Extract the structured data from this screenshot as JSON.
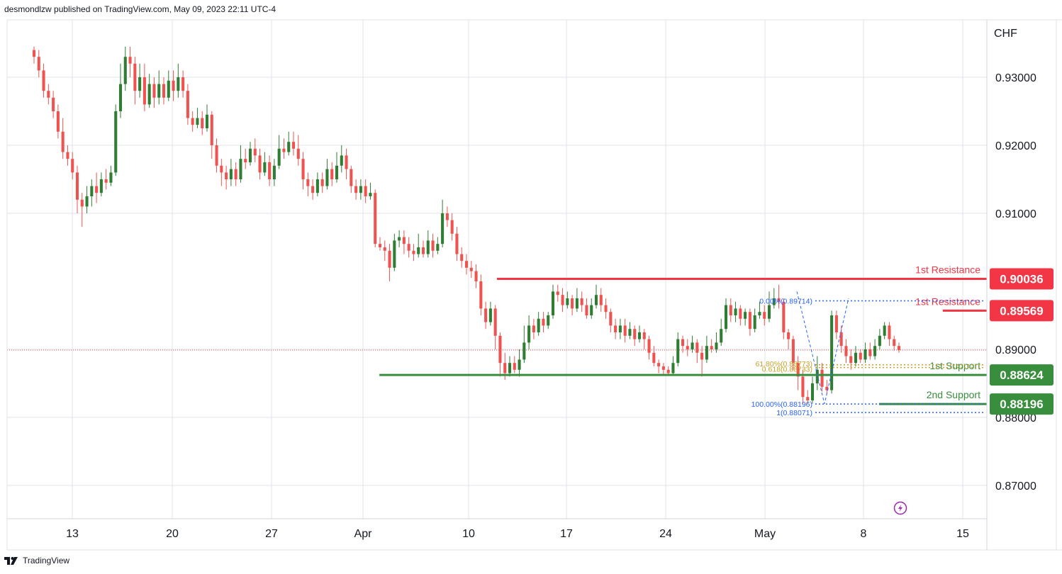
{
  "header": {
    "text": "desmondlzw published on TradingView.com, May 09, 2023 22:11 UTC-4"
  },
  "footer": {
    "brand": "TradingView"
  },
  "colors": {
    "up": "#2e7d32",
    "down": "#ef5350",
    "resistance": "#f23645",
    "support": "#388e3c",
    "fib_blue": "#2962ff",
    "fib_gold": "#c9a227",
    "grid": "#e0e3eb",
    "last_price": "#ef5350",
    "icon_purple": "#9c27b0"
  },
  "chart_data": {
    "type": "candlestick",
    "currency": "CHF",
    "y_ticks": [
      "0.93000",
      "0.92000",
      "0.91000",
      "0.89000",
      "0.88000",
      "0.87000"
    ],
    "y_tick_values": [
      0.93,
      0.92,
      0.91,
      0.89,
      0.88,
      0.87
    ],
    "x_ticks": [
      "13",
      "20",
      "27",
      "Apr",
      "10",
      "17",
      "24",
      "May",
      "8",
      "15"
    ],
    "last_price": 0.8899,
    "levels": [
      {
        "label": "1st Resistance",
        "value": 0.90036,
        "badge": "0.90036",
        "kind": "resistance",
        "start": 0.5
      },
      {
        "label": "1st Resistance",
        "value": 0.89569,
        "badge": "0.89569",
        "kind": "resistance",
        "start": 0.955
      },
      {
        "label": "1st Support",
        "value": 0.88624,
        "badge": "0.88624",
        "kind": "support",
        "start": 0.38
      },
      {
        "label": "2nd Support",
        "value": 0.88196,
        "badge": "0.88196",
        "kind": "support",
        "start": 0.89
      }
    ],
    "fibonacci": [
      {
        "text": "0.00%(0.89714)",
        "value": 0.89714,
        "color": "blue"
      },
      {
        "text": "61.80%(0.88773)",
        "value": 0.88773,
        "color": "gold"
      },
      {
        "text": "0.618(0.88733)",
        "value": 0.88733,
        "color": "gold"
      },
      {
        "text": "100.00%(0.88196)",
        "value": 0.88196,
        "color": "blue"
      },
      {
        "text": "1(0.88071)",
        "value": 0.88071,
        "color": "blue"
      }
    ],
    "candles": [
      [
        0.934,
        0.933,
        0.9345,
        0.932
      ],
      [
        0.933,
        0.931,
        0.934,
        0.93
      ],
      [
        0.931,
        0.928,
        0.932,
        0.927
      ],
      [
        0.928,
        0.927,
        0.929,
        0.926
      ],
      [
        0.927,
        0.925,
        0.928,
        0.924
      ],
      [
        0.925,
        0.922,
        0.926,
        0.921
      ],
      [
        0.922,
        0.919,
        0.924,
        0.918
      ],
      [
        0.919,
        0.918,
        0.92,
        0.917
      ],
      [
        0.918,
        0.916,
        0.919,
        0.915
      ],
      [
        0.916,
        0.912,
        0.917,
        0.91
      ],
      [
        0.912,
        0.911,
        0.913,
        0.908
      ],
      [
        0.911,
        0.9125,
        0.914,
        0.91
      ],
      [
        0.9125,
        0.914,
        0.915,
        0.911
      ],
      [
        0.914,
        0.913,
        0.916,
        0.9115
      ],
      [
        0.913,
        0.915,
        0.916,
        0.9125
      ],
      [
        0.915,
        0.9145,
        0.9165,
        0.9135
      ],
      [
        0.9145,
        0.916,
        0.917,
        0.914
      ],
      [
        0.916,
        0.925,
        0.926,
        0.9155
      ],
      [
        0.925,
        0.929,
        0.932,
        0.924
      ],
      [
        0.929,
        0.933,
        0.9345,
        0.928
      ],
      [
        0.933,
        0.932,
        0.9345,
        0.93
      ],
      [
        0.932,
        0.928,
        0.933,
        0.926
      ],
      [
        0.928,
        0.93,
        0.932,
        0.927
      ],
      [
        0.93,
        0.926,
        0.932,
        0.925
      ],
      [
        0.926,
        0.929,
        0.9305,
        0.9255
      ],
      [
        0.929,
        0.927,
        0.93,
        0.9255
      ],
      [
        0.927,
        0.929,
        0.931,
        0.926
      ],
      [
        0.929,
        0.927,
        0.93,
        0.926
      ],
      [
        0.927,
        0.9295,
        0.931,
        0.9265
      ],
      [
        0.9295,
        0.928,
        0.931,
        0.9265
      ],
      [
        0.928,
        0.93,
        0.932,
        0.927
      ],
      [
        0.93,
        0.928,
        0.931,
        0.927
      ],
      [
        0.928,
        0.924,
        0.929,
        0.923
      ],
      [
        0.924,
        0.923,
        0.925,
        0.922
      ],
      [
        0.923,
        0.924,
        0.9255,
        0.9225
      ],
      [
        0.924,
        0.9225,
        0.925,
        0.9215
      ],
      [
        0.9225,
        0.9245,
        0.926,
        0.922
      ],
      [
        0.9245,
        0.92,
        0.925,
        0.918
      ],
      [
        0.92,
        0.917,
        0.921,
        0.916
      ],
      [
        0.917,
        0.916,
        0.918,
        0.914
      ],
      [
        0.916,
        0.915,
        0.917,
        0.9135
      ],
      [
        0.915,
        0.9165,
        0.918,
        0.914
      ],
      [
        0.9165,
        0.915,
        0.9175,
        0.914
      ],
      [
        0.915,
        0.918,
        0.92,
        0.9145
      ],
      [
        0.918,
        0.9175,
        0.9195,
        0.9165
      ],
      [
        0.9175,
        0.9195,
        0.9205,
        0.917
      ],
      [
        0.9195,
        0.9185,
        0.921,
        0.9175
      ],
      [
        0.9185,
        0.916,
        0.9195,
        0.915
      ],
      [
        0.916,
        0.9175,
        0.919,
        0.9155
      ],
      [
        0.9175,
        0.915,
        0.9185,
        0.914
      ],
      [
        0.915,
        0.917,
        0.918,
        0.914
      ],
      [
        0.917,
        0.9195,
        0.9215,
        0.9165
      ],
      [
        0.9195,
        0.919,
        0.921,
        0.918
      ],
      [
        0.919,
        0.9205,
        0.922,
        0.9185
      ],
      [
        0.9205,
        0.9195,
        0.922,
        0.9185
      ],
      [
        0.9195,
        0.918,
        0.9215,
        0.917
      ],
      [
        0.918,
        0.915,
        0.919,
        0.9135
      ],
      [
        0.915,
        0.914,
        0.916,
        0.9125
      ],
      [
        0.914,
        0.913,
        0.915,
        0.912
      ],
      [
        0.913,
        0.915,
        0.916,
        0.9125
      ],
      [
        0.915,
        0.914,
        0.916,
        0.913
      ],
      [
        0.914,
        0.9165,
        0.918,
        0.9135
      ],
      [
        0.9165,
        0.915,
        0.9175,
        0.914
      ],
      [
        0.915,
        0.917,
        0.919,
        0.9145
      ],
      [
        0.917,
        0.9185,
        0.92,
        0.916
      ],
      [
        0.9185,
        0.9165,
        0.9195,
        0.915
      ],
      [
        0.9165,
        0.914,
        0.917,
        0.913
      ],
      [
        0.914,
        0.913,
        0.915,
        0.912
      ],
      [
        0.913,
        0.914,
        0.915,
        0.912
      ],
      [
        0.914,
        0.9125,
        0.915,
        0.9115
      ],
      [
        0.9125,
        0.913,
        0.9145,
        0.912
      ],
      [
        0.913,
        0.9055,
        0.9135,
        0.905
      ],
      [
        0.9055,
        0.905,
        0.9065,
        0.9045
      ],
      [
        0.905,
        0.9045,
        0.906,
        0.903
      ],
      [
        0.9045,
        0.902,
        0.9055,
        0.9
      ],
      [
        0.902,
        0.906,
        0.907,
        0.9015
      ],
      [
        0.906,
        0.9065,
        0.9075,
        0.905
      ],
      [
        0.9065,
        0.9055,
        0.9075,
        0.904
      ],
      [
        0.9055,
        0.9045,
        0.9065,
        0.9035
      ],
      [
        0.9045,
        0.904,
        0.9055,
        0.903
      ],
      [
        0.904,
        0.905,
        0.907,
        0.9035
      ],
      [
        0.905,
        0.904,
        0.906,
        0.9035
      ],
      [
        0.904,
        0.906,
        0.9075,
        0.9035
      ],
      [
        0.906,
        0.9045,
        0.907,
        0.9035
      ],
      [
        0.9045,
        0.9055,
        0.9065,
        0.904
      ],
      [
        0.9055,
        0.91,
        0.912,
        0.905
      ],
      [
        0.91,
        0.909,
        0.911,
        0.908
      ],
      [
        0.909,
        0.907,
        0.91,
        0.906
      ],
      [
        0.907,
        0.904,
        0.908,
        0.903
      ],
      [
        0.904,
        0.903,
        0.905,
        0.902
      ],
      [
        0.903,
        0.902,
        0.904,
        0.901
      ],
      [
        0.902,
        0.9015,
        0.903,
        0.9005
      ],
      [
        0.9015,
        0.9,
        0.9025,
        0.899
      ],
      [
        0.9,
        0.896,
        0.901,
        0.895
      ],
      [
        0.896,
        0.894,
        0.897,
        0.893
      ],
      [
        0.894,
        0.896,
        0.897,
        0.8935
      ],
      [
        0.896,
        0.892,
        0.8965,
        0.89
      ],
      [
        0.892,
        0.888,
        0.8925,
        0.886
      ],
      [
        0.888,
        0.8865,
        0.8895,
        0.8855
      ],
      [
        0.8865,
        0.888,
        0.889,
        0.886
      ],
      [
        0.888,
        0.887,
        0.889,
        0.8865
      ],
      [
        0.887,
        0.8885,
        0.89,
        0.886
      ],
      [
        0.8885,
        0.891,
        0.8935,
        0.888
      ],
      [
        0.891,
        0.8935,
        0.895,
        0.89
      ],
      [
        0.8935,
        0.8925,
        0.8945,
        0.8915
      ],
      [
        0.8925,
        0.8945,
        0.8955,
        0.892
      ],
      [
        0.8945,
        0.8935,
        0.8955,
        0.8925
      ],
      [
        0.8935,
        0.895,
        0.8955,
        0.893
      ],
      [
        0.895,
        0.8985,
        0.8995,
        0.8945
      ],
      [
        0.8985,
        0.898,
        0.8995,
        0.897
      ],
      [
        0.898,
        0.8965,
        0.899,
        0.8955
      ],
      [
        0.8965,
        0.8975,
        0.8985,
        0.896
      ],
      [
        0.8975,
        0.896,
        0.898,
        0.895
      ],
      [
        0.896,
        0.8975,
        0.899,
        0.8955
      ],
      [
        0.8975,
        0.8965,
        0.8985,
        0.8955
      ],
      [
        0.8965,
        0.895,
        0.8975,
        0.8945
      ],
      [
        0.895,
        0.8965,
        0.8975,
        0.8945
      ],
      [
        0.8965,
        0.898,
        0.8995,
        0.896
      ],
      [
        0.898,
        0.8965,
        0.899,
        0.8955
      ],
      [
        0.8965,
        0.8955,
        0.8975,
        0.8945
      ],
      [
        0.8955,
        0.8935,
        0.896,
        0.8925
      ],
      [
        0.8935,
        0.8925,
        0.8945,
        0.8915
      ],
      [
        0.8925,
        0.8935,
        0.8945,
        0.8915
      ],
      [
        0.8935,
        0.892,
        0.8945,
        0.891
      ],
      [
        0.892,
        0.893,
        0.894,
        0.8915
      ],
      [
        0.893,
        0.8915,
        0.8935,
        0.8905
      ],
      [
        0.8915,
        0.8925,
        0.8935,
        0.891
      ],
      [
        0.8925,
        0.8915,
        0.893,
        0.89
      ],
      [
        0.8915,
        0.8895,
        0.892,
        0.8885
      ],
      [
        0.8895,
        0.888,
        0.8905,
        0.8875
      ],
      [
        0.888,
        0.8875,
        0.8885,
        0.8865
      ],
      [
        0.8875,
        0.887,
        0.888,
        0.8862
      ],
      [
        0.887,
        0.8865,
        0.8875,
        0.8862
      ],
      [
        0.8865,
        0.888,
        0.889,
        0.8862
      ],
      [
        0.888,
        0.8915,
        0.8925,
        0.8875
      ],
      [
        0.8915,
        0.8905,
        0.892,
        0.8895
      ],
      [
        0.8905,
        0.89,
        0.8915,
        0.889
      ],
      [
        0.89,
        0.891,
        0.892,
        0.8895
      ],
      [
        0.891,
        0.8895,
        0.8915,
        0.888
      ],
      [
        0.8895,
        0.8885,
        0.8905,
        0.886
      ],
      [
        0.8885,
        0.8905,
        0.892,
        0.888
      ],
      [
        0.8905,
        0.89,
        0.8915,
        0.8895
      ],
      [
        0.89,
        0.891,
        0.8925,
        0.8895
      ],
      [
        0.891,
        0.893,
        0.8945,
        0.8905
      ],
      [
        0.893,
        0.8965,
        0.8975,
        0.8925
      ],
      [
        0.8965,
        0.895,
        0.8975,
        0.894
      ],
      [
        0.895,
        0.896,
        0.897,
        0.894
      ],
      [
        0.896,
        0.8945,
        0.8965,
        0.8935
      ],
      [
        0.8945,
        0.8955,
        0.896,
        0.8935
      ],
      [
        0.8955,
        0.893,
        0.896,
        0.892
      ],
      [
        0.893,
        0.895,
        0.896,
        0.8925
      ],
      [
        0.895,
        0.8955,
        0.897,
        0.8945
      ],
      [
        0.8955,
        0.8945,
        0.8965,
        0.8935
      ],
      [
        0.8945,
        0.8965,
        0.8985,
        0.894
      ],
      [
        0.8965,
        0.8975,
        0.899,
        0.896
      ],
      [
        0.8975,
        0.897,
        0.8995,
        0.896
      ],
      [
        0.897,
        0.8925,
        0.8975,
        0.8915
      ],
      [
        0.8925,
        0.8915,
        0.893,
        0.89
      ],
      [
        0.8915,
        0.888,
        0.892,
        0.887
      ],
      [
        0.888,
        0.886,
        0.889,
        0.884
      ],
      [
        0.886,
        0.883,
        0.887,
        0.882
      ],
      [
        0.883,
        0.8825,
        0.884,
        0.882
      ],
      [
        0.8825,
        0.885,
        0.886,
        0.882
      ],
      [
        0.885,
        0.887,
        0.889,
        0.884
      ],
      [
        0.887,
        0.8845,
        0.888,
        0.8838
      ],
      [
        0.8845,
        0.884,
        0.8855,
        0.8835
      ],
      [
        0.884,
        0.895,
        0.8957,
        0.8835
      ],
      [
        0.895,
        0.8925,
        0.8957,
        0.8915
      ],
      [
        0.8925,
        0.8905,
        0.8935,
        0.8895
      ],
      [
        0.8905,
        0.889,
        0.8915,
        0.888
      ],
      [
        0.889,
        0.888,
        0.89,
        0.887
      ],
      [
        0.888,
        0.8895,
        0.8905,
        0.8875
      ],
      [
        0.8895,
        0.8885,
        0.89,
        0.888
      ],
      [
        0.8885,
        0.89,
        0.891,
        0.888
      ],
      [
        0.89,
        0.889,
        0.891,
        0.8885
      ],
      [
        0.889,
        0.8905,
        0.8915,
        0.8885
      ],
      [
        0.8905,
        0.892,
        0.893,
        0.89
      ],
      [
        0.892,
        0.8935,
        0.894,
        0.8915
      ],
      [
        0.8935,
        0.8915,
        0.894,
        0.8905
      ],
      [
        0.8915,
        0.8905,
        0.892,
        0.8898
      ],
      [
        0.8905,
        0.8899,
        0.891,
        0.8895
      ]
    ]
  }
}
